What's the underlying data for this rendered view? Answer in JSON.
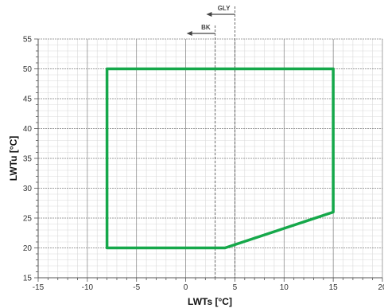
{
  "chart_data": {
    "type": "line",
    "xlabel": "LWTs [°C]",
    "ylabel": "LWTu [°C]",
    "xlim": [
      -15,
      20
    ],
    "ylim": [
      15,
      55
    ],
    "x_ticks": [
      -15,
      -10,
      -5,
      0,
      5,
      10,
      15,
      20
    ],
    "y_ticks": [
      15,
      20,
      25,
      30,
      35,
      40,
      45,
      50,
      55
    ],
    "x_minor_step": 1,
    "y_minor_step": 1,
    "grid": true,
    "series": [
      {
        "points": [
          {
            "x": -8,
            "y": 20
          },
          {
            "x": -8,
            "y": 50
          },
          {
            "x": 15,
            "y": 50
          },
          {
            "x": 15,
            "y": 26
          },
          {
            "x": 4,
            "y": 20
          },
          {
            "x": -8,
            "y": 20
          }
        ],
        "color": "#15a84a"
      }
    ],
    "limit_markers": [
      {
        "label": "GLY",
        "x": 5,
        "direction": "left"
      },
      {
        "label": "BK",
        "x": 3,
        "direction": "left"
      }
    ]
  },
  "colors": {
    "envelope": "#15a84a",
    "grid_major": "#7f7f7f",
    "grid_minor": "#dadada",
    "axis": "#555555",
    "marker": "#444444"
  }
}
